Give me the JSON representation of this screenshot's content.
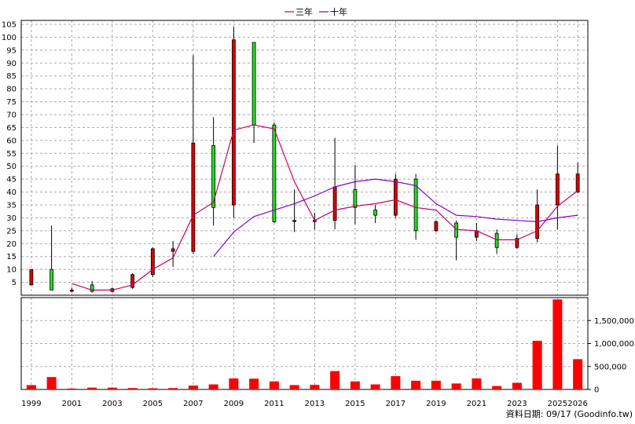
{
  "chart_data": {
    "type": "candlestick",
    "legend": {
      "placement": "top-center",
      "items": [
        {
          "name": "三年",
          "color": "#cc0066"
        },
        {
          "name": "十年",
          "color": "#8800cc"
        }
      ]
    },
    "footer_note": "資料日期: 09/17 (Goodinfo.tw)",
    "grid": true,
    "price_axis": {
      "min": 0,
      "max": 105,
      "ticks": [
        5,
        10,
        15,
        20,
        25,
        30,
        35,
        40,
        45,
        50,
        55,
        60,
        65,
        70,
        75,
        80,
        85,
        90,
        95,
        100,
        105
      ]
    },
    "volume_axis": {
      "min": 0,
      "max": 2000000,
      "ticks": [
        0,
        500000,
        1000000,
        1500000
      ],
      "tick_labels": [
        "0",
        "500,000",
        "1,000,000",
        "1,500,000"
      ]
    },
    "years": [
      1999,
      2000,
      2001,
      2002,
      2003,
      2004,
      2005,
      2006,
      2007,
      2008,
      2009,
      2010,
      2011,
      2012,
      2013,
      2014,
      2015,
      2016,
      2017,
      2018,
      2019,
      2020,
      2021,
      2022,
      2023,
      2024,
      2025,
      2026
    ],
    "x_tick_labels": [
      "1999",
      "2001",
      "2003",
      "2005",
      "2007",
      "2009",
      "2011",
      "2013",
      "2015",
      "2017",
      "2019",
      "2021",
      "2023",
      "2025",
      "2026"
    ],
    "candles": [
      {
        "year": 1999,
        "open": 4,
        "close": 10,
        "high": 10,
        "low": 4
      },
      {
        "year": 2000,
        "open": 10,
        "close": 2,
        "high": 27,
        "low": 2
      },
      {
        "year": 2001,
        "open": 2,
        "close": 2,
        "high": 3,
        "low": 1
      },
      {
        "year": 2002,
        "open": 4,
        "close": 1.5,
        "high": 5.5,
        "low": 1
      },
      {
        "year": 2003,
        "open": 1.5,
        "close": 2.5,
        "high": 3,
        "low": 1
      },
      {
        "year": 2004,
        "open": 3,
        "close": 8,
        "high": 8.5,
        "low": 2.5
      },
      {
        "year": 2005,
        "open": 8,
        "close": 18,
        "high": 18.5,
        "low": 7
      },
      {
        "year": 2006,
        "open": 17,
        "close": 18,
        "high": 21,
        "low": 11
      },
      {
        "year": 2007,
        "open": 17,
        "close": 59,
        "high": 93,
        "low": 16
      },
      {
        "year": 2008,
        "open": 58,
        "close": 34,
        "high": 69,
        "low": 27
      },
      {
        "year": 2009,
        "open": 35,
        "close": 99,
        "high": 104,
        "low": 30
      },
      {
        "year": 2010,
        "open": 98,
        "close": 66,
        "high": 98,
        "low": 59
      },
      {
        "year": 2011,
        "open": 66,
        "close": 28.5,
        "high": 67,
        "low": 28
      },
      {
        "year": 2012,
        "open": 29,
        "close": 29,
        "high": 41,
        "low": 24.5
      },
      {
        "year": 2013,
        "open": 29,
        "close": 29,
        "high": 32,
        "low": 25.5
      },
      {
        "year": 2014,
        "open": 29,
        "close": 42,
        "high": 61,
        "low": 25.5
      },
      {
        "year": 2015,
        "open": 41,
        "close": 34,
        "high": 50.5,
        "low": 27.5
      },
      {
        "year": 2016,
        "open": 33,
        "close": 31,
        "high": 35,
        "low": 28
      },
      {
        "year": 2017,
        "open": 31,
        "close": 45,
        "high": 47,
        "low": 30
      },
      {
        "year": 2018,
        "open": 45,
        "close": 25,
        "high": 47,
        "low": 21.5
      },
      {
        "year": 2019,
        "open": 25,
        "close": 28.5,
        "high": 29,
        "low": 24.5
      },
      {
        "year": 2020,
        "open": 28,
        "close": 22.5,
        "high": 29,
        "low": 13.5
      },
      {
        "year": 2021,
        "open": 22.5,
        "close": 25,
        "high": 28,
        "low": 21
      },
      {
        "year": 2022,
        "open": 24,
        "close": 18.5,
        "high": 25.5,
        "low": 16
      },
      {
        "year": 2023,
        "open": 18.5,
        "close": 22,
        "high": 23.5,
        "low": 18
      },
      {
        "year": 2024,
        "open": 22,
        "close": 35,
        "high": 41,
        "low": 20.5
      },
      {
        "year": 2025,
        "open": 35,
        "close": 47,
        "high": 58,
        "low": 25.5
      },
      {
        "year": 2026,
        "open": 40,
        "close": 47,
        "high": 51.5,
        "low": 39.5
      }
    ],
    "series": [
      {
        "name": "三年",
        "color": "#cc0066",
        "points": [
          {
            "year": 2001,
            "value": 4.5
          },
          {
            "year": 2002,
            "value": 2
          },
          {
            "year": 2003,
            "value": 2
          },
          {
            "year": 2004,
            "value": 4
          },
          {
            "year": 2005,
            "value": 10
          },
          {
            "year": 2006,
            "value": 14.5
          },
          {
            "year": 2007,
            "value": 31
          },
          {
            "year": 2008,
            "value": 36
          },
          {
            "year": 2009,
            "value": 64
          },
          {
            "year": 2010,
            "value": 66
          },
          {
            "year": 2011,
            "value": 64.5
          },
          {
            "year": 2012,
            "value": 44
          },
          {
            "year": 2013,
            "value": 29
          },
          {
            "year": 2014,
            "value": 33
          },
          {
            "year": 2015,
            "value": 34.5
          },
          {
            "year": 2016,
            "value": 35.5
          },
          {
            "year": 2017,
            "value": 37
          },
          {
            "year": 2018,
            "value": 34
          },
          {
            "year": 2019,
            "value": 33
          },
          {
            "year": 2020,
            "value": 25.5
          },
          {
            "year": 2021,
            "value": 25
          },
          {
            "year": 2022,
            "value": 21.5
          },
          {
            "year": 2023,
            "value": 21.5
          },
          {
            "year": 2024,
            "value": 25
          },
          {
            "year": 2025,
            "value": 34.5
          },
          {
            "year": 2026,
            "value": 40.5
          }
        ]
      },
      {
        "name": "十年",
        "color": "#8800cc",
        "points": [
          {
            "year": 2008,
            "value": 15
          },
          {
            "year": 2009,
            "value": 24.5
          },
          {
            "year": 2010,
            "value": 30.5
          },
          {
            "year": 2011,
            "value": 33
          },
          {
            "year": 2012,
            "value": 35.5
          },
          {
            "year": 2013,
            "value": 38.5
          },
          {
            "year": 2014,
            "value": 42
          },
          {
            "year": 2015,
            "value": 44
          },
          {
            "year": 2016,
            "value": 45
          },
          {
            "year": 2017,
            "value": 44
          },
          {
            "year": 2018,
            "value": 42.5
          },
          {
            "year": 2019,
            "value": 35.5
          },
          {
            "year": 2020,
            "value": 31
          },
          {
            "year": 2021,
            "value": 30.5
          },
          {
            "year": 2022,
            "value": 29.5
          },
          {
            "year": 2023,
            "value": 29
          },
          {
            "year": 2024,
            "value": 28.5
          },
          {
            "year": 2025,
            "value": 30
          },
          {
            "year": 2026,
            "value": 31
          }
        ]
      }
    ],
    "volume": [
      {
        "year": 1999,
        "value": 95000
      },
      {
        "year": 2000,
        "value": 270000
      },
      {
        "year": 2001,
        "value": 20000
      },
      {
        "year": 2002,
        "value": 40000
      },
      {
        "year": 2003,
        "value": 40000
      },
      {
        "year": 2004,
        "value": 30000
      },
      {
        "year": 2005,
        "value": 25000
      },
      {
        "year": 2006,
        "value": 30000
      },
      {
        "year": 2007,
        "value": 85000
      },
      {
        "year": 2008,
        "value": 110000
      },
      {
        "year": 2009,
        "value": 240000
      },
      {
        "year": 2010,
        "value": 235000
      },
      {
        "year": 2011,
        "value": 175000
      },
      {
        "year": 2012,
        "value": 95000
      },
      {
        "year": 2013,
        "value": 100000
      },
      {
        "year": 2014,
        "value": 400000
      },
      {
        "year": 2015,
        "value": 175000
      },
      {
        "year": 2016,
        "value": 110000
      },
      {
        "year": 2017,
        "value": 290000
      },
      {
        "year": 2018,
        "value": 190000
      },
      {
        "year": 2019,
        "value": 190000
      },
      {
        "year": 2020,
        "value": 130000
      },
      {
        "year": 2021,
        "value": 240000
      },
      {
        "year": 2022,
        "value": 75000
      },
      {
        "year": 2023,
        "value": 145000
      },
      {
        "year": 2024,
        "value": 1060000
      },
      {
        "year": 2025,
        "value": 1960000
      },
      {
        "year": 2026,
        "value": 660000
      }
    ]
  }
}
